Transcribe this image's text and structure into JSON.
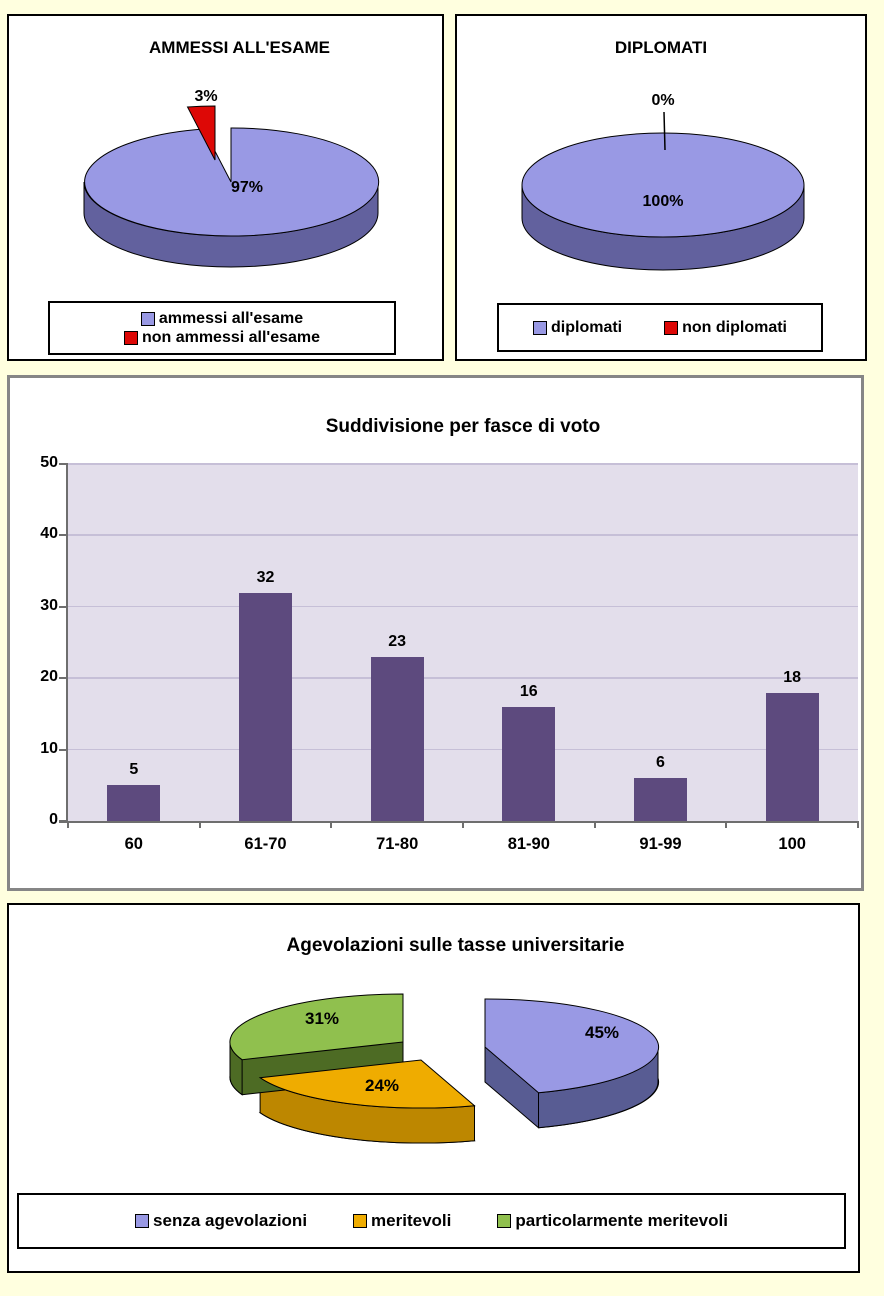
{
  "page": {
    "background_color": "#FFFFDF"
  },
  "chart_data": [
    {
      "type": "pie",
      "title": "AMMESSI ALL'ESAME",
      "labels": [
        "ammessi all'esame",
        "non ammessi all'esame"
      ],
      "values": [
        97,
        3
      ],
      "value_labels": [
        "97%",
        "3%"
      ],
      "colors": [
        "#9999E4",
        "#DD0806"
      ],
      "side_colors": [
        "#62619E",
        "#7D0403"
      ],
      "legend_position": "bottom"
    },
    {
      "type": "pie",
      "title": "DIPLOMATI",
      "labels": [
        "diplomati",
        "non diplomati"
      ],
      "values": [
        100,
        0
      ],
      "value_labels": [
        "100%",
        "0%"
      ],
      "colors": [
        "#9999E4",
        "#DD0806"
      ],
      "side_colors": [
        "#62619E",
        "#7D0403"
      ],
      "legend_position": "bottom"
    },
    {
      "type": "bar",
      "title": "Suddivisione per fasce di voto",
      "categories": [
        "60",
        "61-70",
        "71-80",
        "81-90",
        "91-99",
        "100"
      ],
      "values": [
        5,
        32,
        23,
        16,
        6,
        18
      ],
      "ylim": [
        0,
        50
      ],
      "yticks": [
        0,
        10,
        20,
        30,
        40,
        50
      ],
      "bar_color": "#5D4A7E",
      "plot_background": "#E3DEEB",
      "gridline_color": "#C6BFD7",
      "axis_color": "#6E6E6E",
      "grid": "horizontal",
      "legend_position": "none"
    },
    {
      "type": "pie",
      "title": "Agevolazioni sulle tasse universitarie",
      "labels": [
        "senza agevolazioni",
        "meritevoli",
        "particolarmente meritevoli"
      ],
      "values": [
        45,
        24,
        31
      ],
      "value_labels": [
        "45%",
        "24%",
        "31%"
      ],
      "colors": [
        "#9999E4",
        "#EFAC00",
        "#90C04E"
      ],
      "side_colors": [
        "#585C93",
        "#BD8700",
        "#4D6B24"
      ],
      "legend_position": "bottom"
    }
  ]
}
